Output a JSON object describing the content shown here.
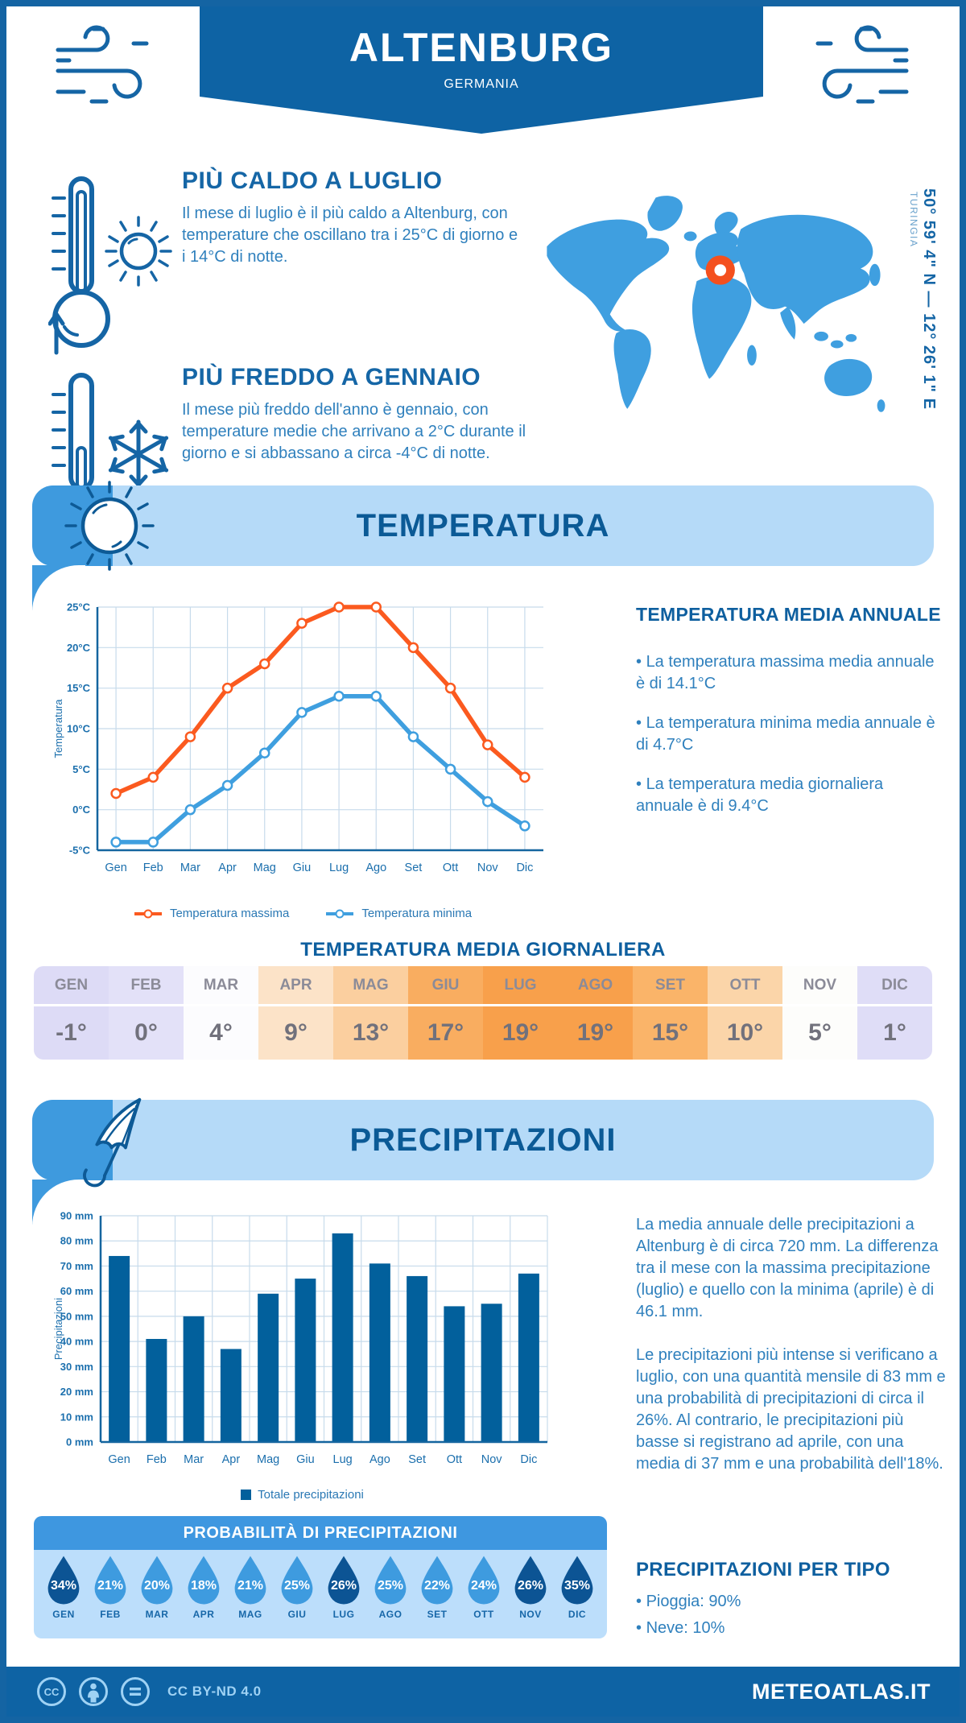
{
  "header": {
    "city": "ALTENBURG",
    "country": "GERMANIA"
  },
  "highlights": {
    "warm": {
      "title": "PIÙ CALDO A LUGLIO",
      "text": "Il mese di luglio è il più caldo a Altenburg, con temperature che oscillano tra i 25°C di giorno e i 14°C di notte."
    },
    "cold": {
      "title": "PIÙ FREDDO A GENNAIO",
      "text": "Il mese più freddo dell'anno è gennaio, con temperature medie che arrivano a 2°C durante il giorno e si abbassano a circa -4°C di notte."
    }
  },
  "map": {
    "coordinates": "50° 59' 4\" N — 12° 26' 1\" E",
    "region": "TURINGIA",
    "pin_color": "#f4501e",
    "land_color": "#3f9fe0"
  },
  "temperature": {
    "title": "TEMPERATURA",
    "annual": {
      "title": "TEMPERATURA MEDIA ANNUALE",
      "bullets": [
        "La temperatura massima media annuale è di 14.1°C",
        "La temperatura minima media annuale è di 4.7°C",
        "La temperatura media giornaliera annuale è di 9.4°C"
      ]
    },
    "daily": {
      "title": "TEMPERATURA MEDIA GIORNALIERA",
      "months": [
        "GEN",
        "FEB",
        "MAR",
        "APR",
        "MAG",
        "GIU",
        "LUG",
        "AGO",
        "SET",
        "OTT",
        "NOV",
        "DIC"
      ],
      "values": [
        "-1°",
        "0°",
        "4°",
        "9°",
        "13°",
        "17°",
        "19°",
        "19°",
        "15°",
        "10°",
        "5°",
        "1°"
      ],
      "cell_colors": [
        "#dddbf6",
        "#e3e1f8",
        "#fcfcfe",
        "#fce3c8",
        "#fbcf9f",
        "#f9ad60",
        "#f8a04b",
        "#f8a04b",
        "#fab469",
        "#fbd5a9",
        "#fdfdfb",
        "#dfddf7"
      ]
    }
  },
  "precipitation": {
    "title": "PRECIPITAZIONI",
    "para1": "La media annuale delle precipitazioni a Altenburg è di circa 720 mm. La differenza tra il mese con la massima precipitazione (luglio) e quello con la minima (aprile) è di 46.1 mm.",
    "para2": "Le precipitazioni più intense si verificano a luglio, con una quantità mensile di 83 mm e una probabilità di precipitazioni di circa il 26%. Al contrario, le precipitazioni più basse si registrano ad aprile, con una media di 37 mm e una probabilità dell'18%.",
    "probability": {
      "title": "PROBABILITÀ DI PRECIPITAZIONI",
      "months": [
        "GEN",
        "FEB",
        "MAR",
        "APR",
        "MAG",
        "GIU",
        "LUG",
        "AGO",
        "SET",
        "OTT",
        "NOV",
        "DIC"
      ],
      "values": [
        "34%",
        "21%",
        "20%",
        "18%",
        "21%",
        "25%",
        "26%",
        "25%",
        "22%",
        "24%",
        "26%",
        "35%"
      ],
      "dark": [
        true,
        false,
        false,
        false,
        false,
        false,
        true,
        false,
        false,
        false,
        true,
        true
      ],
      "drop_color": "#3e9bdf",
      "drop_color_dark": "#0c5494"
    },
    "per_tipo": {
      "title": "PRECIPITAZIONI PER TIPO",
      "items": [
        "Pioggia: 90%",
        "Neve: 10%"
      ]
    }
  },
  "footer": {
    "license": "CC BY-ND 4.0",
    "brand": "METEOATLAS.IT"
  },
  "chart_data": [
    {
      "type": "line",
      "categories": [
        "Gen",
        "Feb",
        "Mar",
        "Apr",
        "Mag",
        "Giu",
        "Lug",
        "Ago",
        "Set",
        "Ott",
        "Nov",
        "Dic"
      ],
      "series": [
        {
          "name": "Temperatura massima",
          "color": "#fb5a1f",
          "values": [
            2,
            4,
            9,
            15,
            18,
            23,
            25,
            25,
            20,
            15,
            8,
            4
          ]
        },
        {
          "name": "Temperatura minima",
          "color": "#3f9fdf",
          "values": [
            -4,
            -4,
            0,
            3,
            7,
            12,
            14,
            14,
            9,
            5,
            1,
            -2
          ]
        }
      ],
      "ylabel": "Temperatura",
      "xlabel": "",
      "ylim": [
        -5,
        25
      ],
      "ytick_step": 5,
      "ytick_suffix": "°C",
      "grid": true,
      "legend_position": "bottom"
    },
    {
      "type": "bar",
      "categories": [
        "Gen",
        "Feb",
        "Mar",
        "Apr",
        "Mag",
        "Giu",
        "Lug",
        "Ago",
        "Set",
        "Ott",
        "Nov",
        "Dic"
      ],
      "values": [
        74,
        41,
        50,
        37,
        59,
        65,
        83,
        71,
        66,
        54,
        55,
        67
      ],
      "series_name": "Totale precipitazioni",
      "color": "#02609c",
      "ylabel": "Precipitazioni",
      "xlabel": "",
      "ylim": [
        0,
        90
      ],
      "ytick_step": 10,
      "ytick_suffix": " mm",
      "grid": true,
      "legend_position": "bottom"
    }
  ]
}
